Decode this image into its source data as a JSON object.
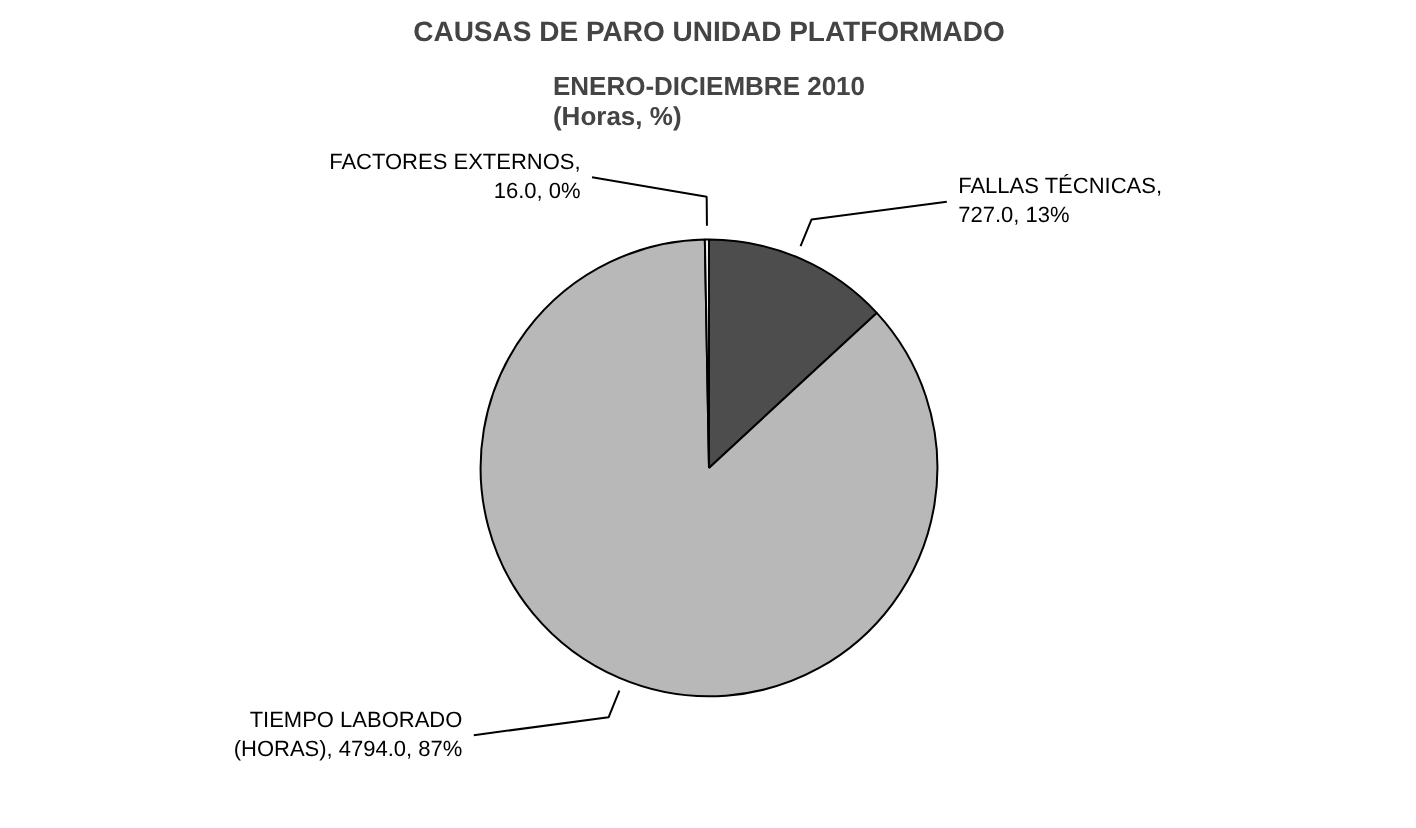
{
  "chart_data": {
    "type": "pie",
    "title": "CAUSAS DE PARO UNIDAD PLATFORMADO",
    "subtitle": "ENERO-DICIEMBRE 2010\n(Horas, %)",
    "categories": [
      "FALLAS TÉCNICAS",
      "TIEMPO LABORADO (HORAS)",
      "FACTORES EXTERNOS"
    ],
    "values": [
      727.0,
      4794.0,
      16.0
    ],
    "value_labels": [
      ", 727.0, 13%",
      ", 4794.0, 87%",
      ", 16.0, 0%"
    ],
    "colors": [
      "#4d4d4d",
      "#b8b8b8",
      "#f0f0f0"
    ]
  }
}
